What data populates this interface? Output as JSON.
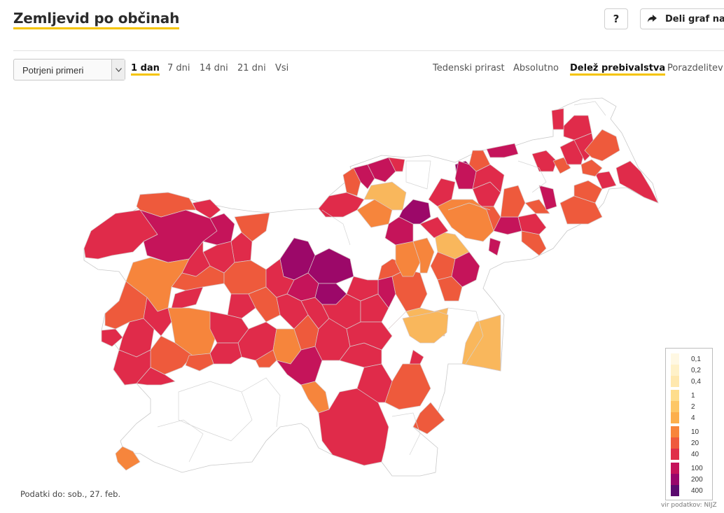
{
  "header": {
    "title": "Zemljevid po občinah",
    "help_label": "?",
    "share_label": "Deli graf na"
  },
  "controls": {
    "select_value": "Potrjeni primeri",
    "ranges": [
      "1 dan",
      "7 dni",
      "14 dni",
      "21 dni",
      "Vsi"
    ],
    "active_range": "1 dan",
    "metrics": [
      "Tedenski prirast",
      "Absolutno",
      "Delež prebivalstva",
      "Porazdelitev"
    ],
    "active_metric": "Delež prebivalstva"
  },
  "legend": {
    "entries": [
      {
        "label": "0,1",
        "color": "#fff8e3"
      },
      {
        "label": "0,2",
        "color": "#fff1c8"
      },
      {
        "label": "0,4",
        "color": "#ffe8ae"
      },
      {
        "label": "1",
        "color": "#fedd8c"
      },
      {
        "label": "2",
        "color": "#fdc766"
      },
      {
        "label": "4",
        "color": "#fcaf4c"
      },
      {
        "label": "10",
        "color": "#f8853b"
      },
      {
        "label": "20",
        "color": "#ef5a3d"
      },
      {
        "label": "40",
        "color": "#e02f48"
      },
      {
        "label": "100",
        "color": "#c5135a"
      },
      {
        "label": "200",
        "color": "#98066b"
      },
      {
        "label": "400",
        "color": "#5a0a6e"
      }
    ]
  },
  "map_colors": {
    "none": "#ffffff",
    "c4": "#f9b75c",
    "c10": "#f6853c",
    "c20": "#ee5a3c",
    "c40": "#e02b4a",
    "c100": "#c5145a",
    "c200": "#9c0869"
  },
  "footer": {
    "updated": "Podatki do: sob., 27. feb.",
    "source": "vir podatkov: NIJZ"
  }
}
